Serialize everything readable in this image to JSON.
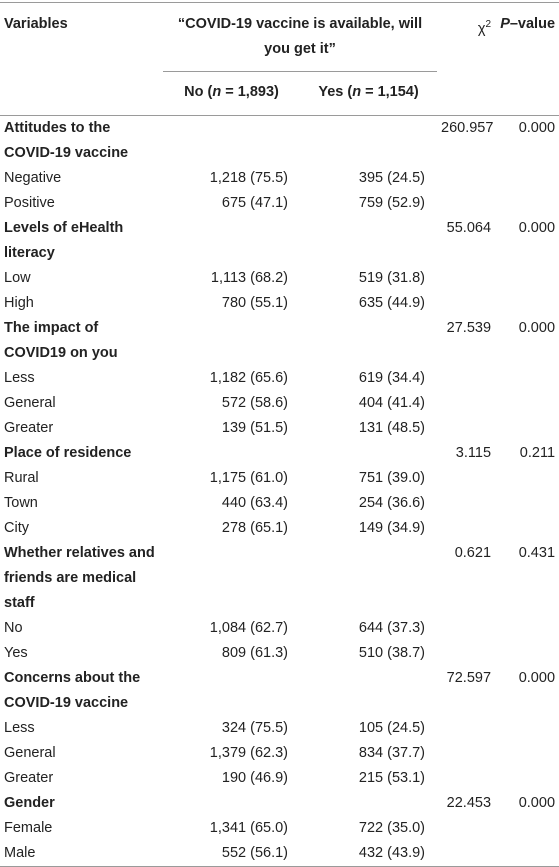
{
  "header": {
    "variables": "Variables",
    "question": "“COVID-19 vaccine is available, will you get it”",
    "no": [
      "No (",
      "n",
      " = 1,893)"
    ],
    "yes": [
      "Yes (",
      "n",
      " = 1,154)"
    ],
    "chi2": [
      "χ",
      "2"
    ],
    "p": [
      "P",
      "–value"
    ]
  },
  "groups": [
    {
      "name": "Attitudes to the COVID-19 vaccine",
      "chi2": "260.957",
      "p": "0.000",
      "rows": [
        [
          "Negative",
          "1,218 (75.5)",
          "395 (24.5)"
        ],
        [
          "Positive",
          "675 (47.1)",
          "759 (52.9)"
        ]
      ]
    },
    {
      "name": "Levels of eHealth literacy",
      "chi2": "55.064",
      "p": "0.000",
      "rows": [
        [
          "Low",
          "1,113 (68.2)",
          "519 (31.8)"
        ],
        [
          "High",
          "780 (55.1)",
          "635 (44.9)"
        ]
      ]
    },
    {
      "name": "The impact of COVID19 on you",
      "chi2": "27.539",
      "p": "0.000",
      "rows": [
        [
          "Less",
          "1,182 (65.6)",
          "619 (34.4)"
        ],
        [
          "General",
          "572 (58.6)",
          "404 (41.4)"
        ],
        [
          "Greater",
          "139 (51.5)",
          "131 (48.5)"
        ]
      ]
    },
    {
      "name": "Place of residence",
      "chi2": "3.115",
      "p": "0.211",
      "rows": [
        [
          "Rural",
          "1,175 (61.0)",
          "751 (39.0)"
        ],
        [
          "Town",
          "440 (63.4)",
          "254 (36.6)"
        ],
        [
          "City",
          "278 (65.1)",
          "149 (34.9)"
        ]
      ]
    },
    {
      "name": "Whether relatives and friends are medical staff",
      "chi2": "0.621",
      "p": "0.431",
      "rows": [
        [
          "No",
          "1,084 (62.7)",
          "644 (37.3)"
        ],
        [
          "Yes",
          "809 (61.3)",
          "510 (38.7)"
        ]
      ]
    },
    {
      "name": "Concerns about the COVID-19 vaccine",
      "chi2": "72.597",
      "p": "0.000",
      "rows": [
        [
          "Less",
          "324 (75.5)",
          "105 (24.5)"
        ],
        [
          "General",
          "1,379 (62.3)",
          "834 (37.7)"
        ],
        [
          "Greater",
          "190 (46.9)",
          "215 (53.1)"
        ]
      ]
    },
    {
      "name": "Gender",
      "chi2": "22.453",
      "p": "0.000",
      "rows": [
        [
          "Female",
          "1,341 (65.0)",
          "722 (35.0)"
        ],
        [
          "Male",
          "552 (56.1)",
          "432 (43.9)"
        ]
      ]
    }
  ]
}
